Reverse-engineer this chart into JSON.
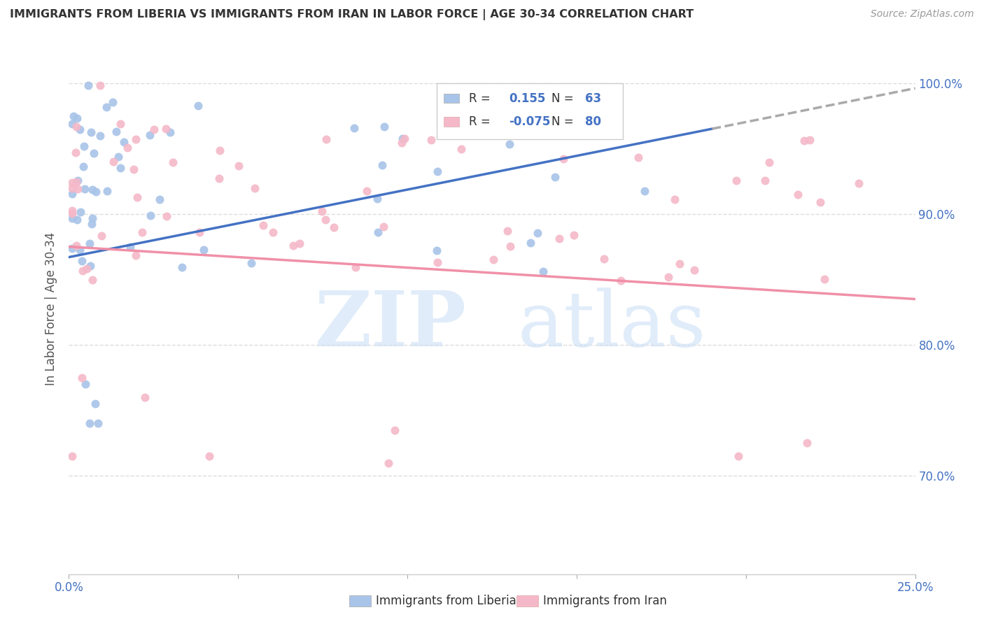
{
  "title": "IMMIGRANTS FROM LIBERIA VS IMMIGRANTS FROM IRAN IN LABOR FORCE | AGE 30-34 CORRELATION CHART",
  "source": "Source: ZipAtlas.com",
  "ylabel": "In Labor Force | Age 30-34",
  "legend_blue_r": "0.155",
  "legend_blue_n": "63",
  "legend_pink_r": "-0.075",
  "legend_pink_n": "80",
  "blue_color": "#a8c4e8",
  "pink_color": "#f4b8c8",
  "blue_line_color": "#4472C4",
  "pink_line_color": "#f090a8",
  "dashed_line_color": "#aaaaaa",
  "xlim": [
    0.0,
    0.25
  ],
  "ylim": [
    0.625,
    1.03
  ],
  "yticks": [
    0.7,
    0.8,
    0.9,
    1.0
  ],
  "ytick_labels": [
    "70.0%",
    "80.0%",
    "90.0%",
    "100.0%"
  ],
  "xtick_labels_left": "0.0%",
  "xtick_labels_right": "25.0%"
}
